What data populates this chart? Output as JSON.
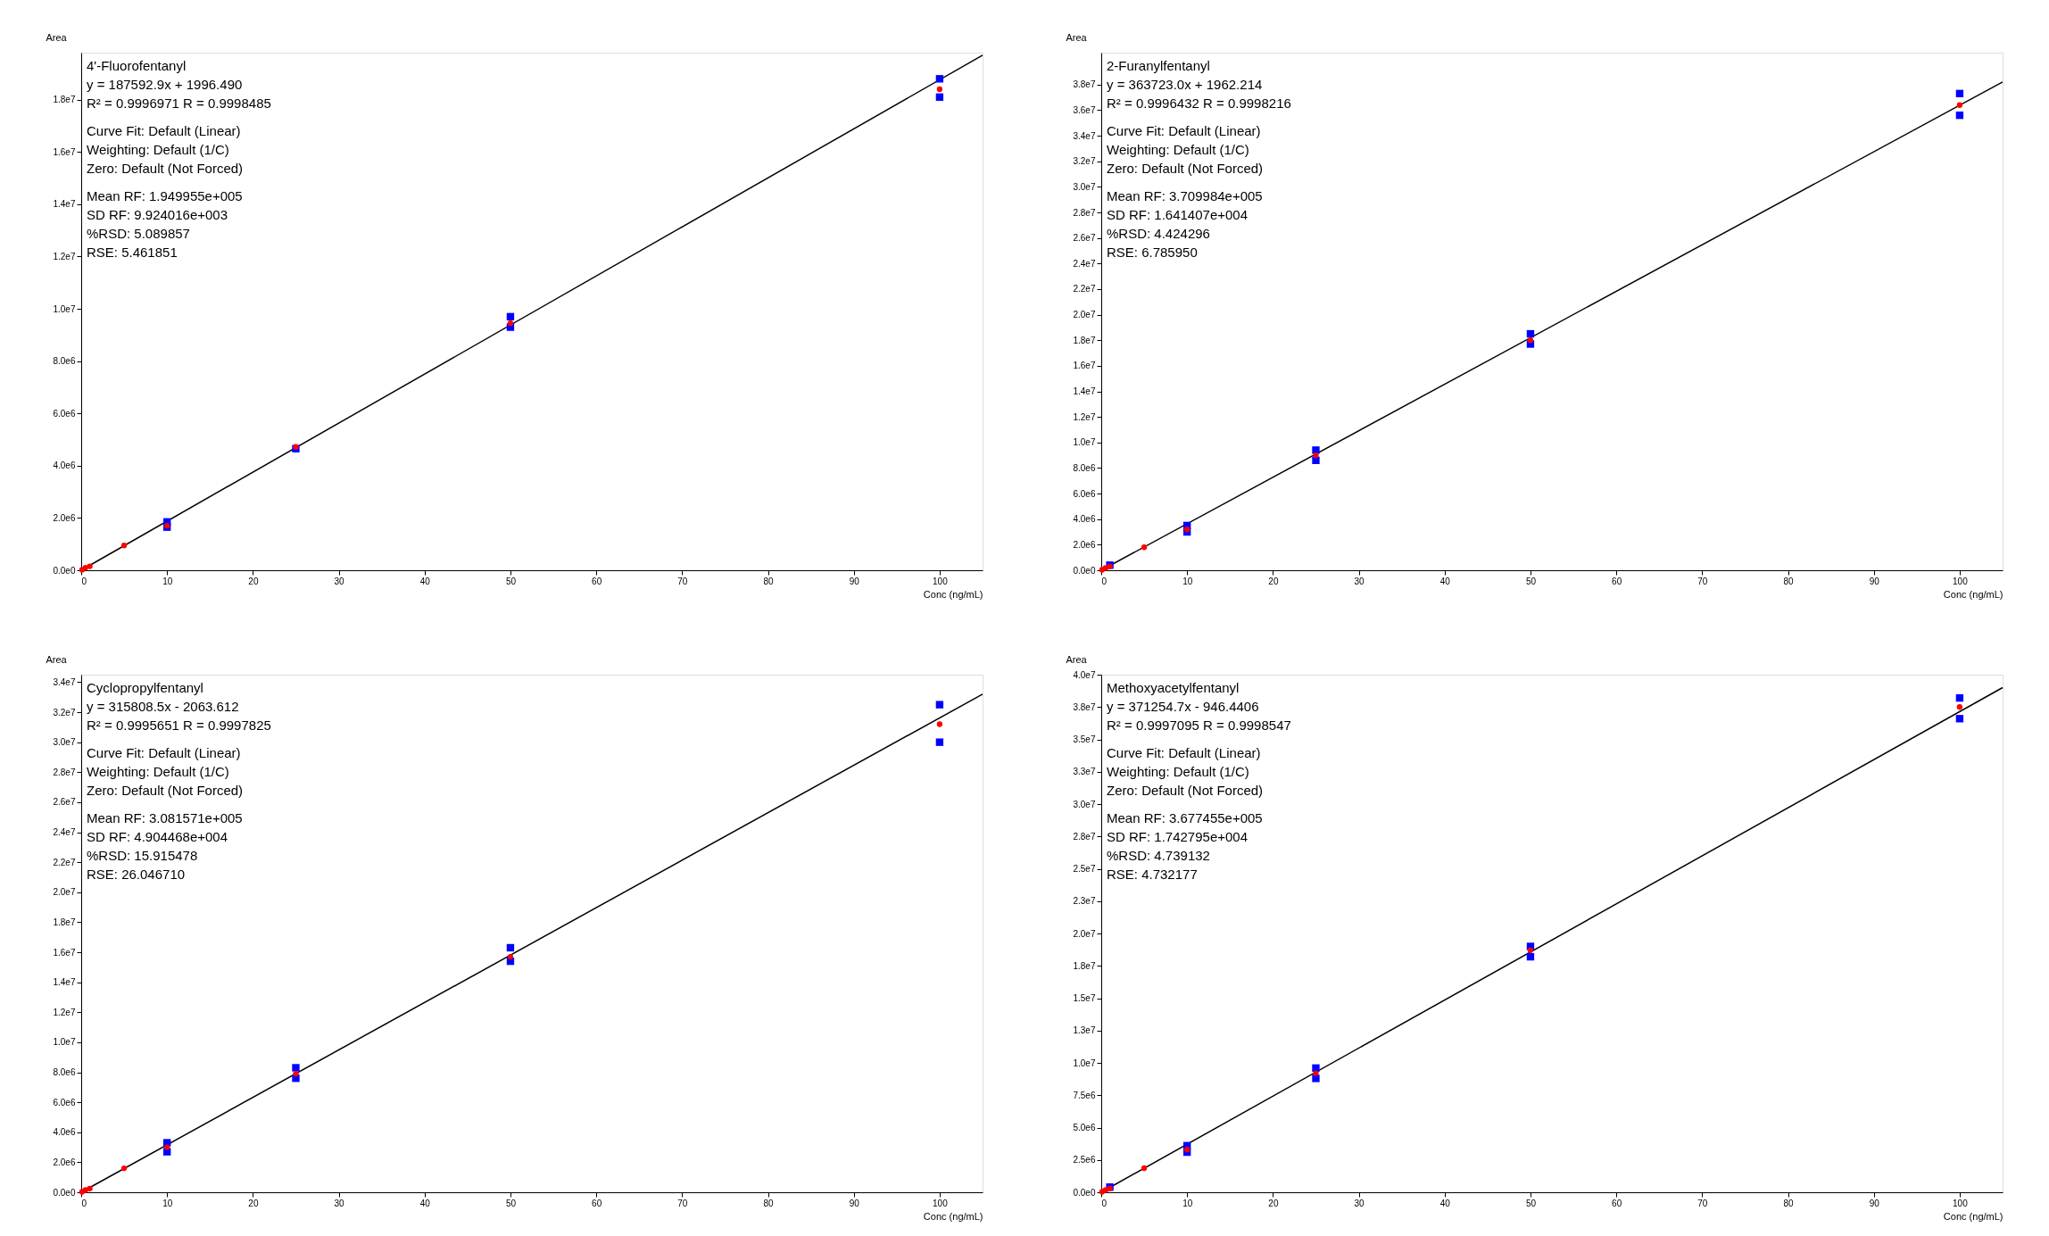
{
  "chart_data": [
    {
      "type": "scatter",
      "title": "4'-Fluorofentanyl",
      "xlabel": "Conc (ng/mL)",
      "ylabel": "Area",
      "grid": false,
      "annotations": [
        "y = 187592.9x + 1996.490",
        "R² = 0.9996971   R = 0.9998485",
        "Curve Fit: Default (Linear)",
        "Weighting: Default (1/C)",
        "Zero: Default (Not Forced)",
        "Mean RF: 1.949955e+005",
        "SD RF: 9.924016e+003",
        "%RSD: 5.089857",
        "RSE: 5.461851"
      ],
      "xlim": [
        0,
        105
      ],
      "xticks": [
        0,
        10,
        20,
        30,
        40,
        50,
        60,
        70,
        80,
        90,
        100
      ],
      "ylim": [
        0,
        19800000
      ],
      "yticks": [
        {
          "value": 0,
          "label": "0.0e0"
        },
        {
          "value": 2000000,
          "label": "2.0e6"
        },
        {
          "value": 4000000,
          "label": "4.0e6"
        },
        {
          "value": 6000000,
          "label": "6.0e6"
        },
        {
          "value": 8000000,
          "label": "8.0e6"
        },
        {
          "value": 10000000,
          "label": "1.0e7"
        },
        {
          "value": 12000000,
          "label": "1.2e7"
        },
        {
          "value": 14000000,
          "label": "1.4e7"
        },
        {
          "value": 16000000,
          "label": "1.6e7"
        },
        {
          "value": 18000000,
          "label": "1.8e7"
        }
      ],
      "series": [
        {
          "type": "line",
          "color": "#000000",
          "marker": "none",
          "line_style": "solid",
          "x": [
            0,
            105
          ],
          "values": [
            0,
            19700000
          ]
        },
        {
          "color": "#0000ff",
          "marker": "square",
          "x": [
            10,
            10,
            25,
            50,
            50,
            100,
            100
          ],
          "values": [
            1850000,
            1650000,
            4650000,
            9700000,
            9300000,
            18800000,
            18100000
          ]
        },
        {
          "color": "#ff0000",
          "marker": "circle",
          "x": [
            0.1,
            0.5,
            1,
            5,
            10,
            25,
            50,
            100
          ],
          "values": [
            20000,
            100000,
            150000,
            950000,
            1700000,
            4720000,
            9450000,
            18400000
          ]
        }
      ]
    },
    {
      "type": "scatter",
      "title": "2-Furanylfentanyl",
      "xlabel": "Conc (ng/mL)",
      "ylabel": "Area",
      "grid": false,
      "annotations": [
        "y = 363723.0x + 1962.214",
        "R² = 0.9996432   R = 0.9998216",
        "Curve Fit: Default (Linear)",
        "Weighting: Default (1/C)",
        "Zero: Default (Not Forced)",
        "Mean RF: 3.709984e+005",
        "SD RF: 1.641407e+004",
        "%RSD: 4.424296",
        "RSE: 6.785950"
      ],
      "xlim": [
        0,
        105
      ],
      "xticks": [
        0,
        10,
        20,
        30,
        40,
        50,
        60,
        70,
        80,
        90,
        100
      ],
      "ylim": [
        0,
        40500000
      ],
      "yticks": [
        {
          "value": 0,
          "label": "0.0e0"
        },
        {
          "value": 2000000,
          "label": "2.0e6"
        },
        {
          "value": 4000000,
          "label": "4.0e6"
        },
        {
          "value": 6000000,
          "label": "6.0e6"
        },
        {
          "value": 8000000,
          "label": "8.0e6"
        },
        {
          "value": 10000000,
          "label": "1.0e7"
        },
        {
          "value": 12000000,
          "label": "1.2e7"
        },
        {
          "value": 14000000,
          "label": "1.4e7"
        },
        {
          "value": 16000000,
          "label": "1.6e7"
        },
        {
          "value": 18000000,
          "label": "1.8e7"
        },
        {
          "value": 20000000,
          "label": "2.0e7"
        },
        {
          "value": 22000000,
          "label": "2.2e7"
        },
        {
          "value": 24000000,
          "label": "2.4e7"
        },
        {
          "value": 26000000,
          "label": "2.6e7"
        },
        {
          "value": 28000000,
          "label": "2.8e7"
        },
        {
          "value": 30000000,
          "label": "3.0e7"
        },
        {
          "value": 32000000,
          "label": "3.2e7"
        },
        {
          "value": 34000000,
          "label": "3.4e7"
        },
        {
          "value": 36000000,
          "label": "3.6e7"
        },
        {
          "value": 38000000,
          "label": "3.8e7"
        }
      ],
      "series": [
        {
          "type": "line",
          "color": "#000000",
          "marker": "none",
          "line_style": "solid",
          "x": [
            0,
            105
          ],
          "values": [
            0,
            38200000
          ]
        },
        {
          "color": "#0000ff",
          "marker": "square",
          "x": [
            1,
            10,
            10,
            25,
            25,
            50,
            50,
            100,
            100
          ],
          "values": [
            400000,
            3500000,
            3000000,
            9400000,
            8600000,
            18500000,
            17700000,
            37300000,
            35600000
          ]
        },
        {
          "color": "#ff0000",
          "marker": "circle",
          "x": [
            0.1,
            0.5,
            1,
            5,
            10,
            25,
            50,
            100
          ],
          "values": [
            40000,
            180000,
            300000,
            1800000,
            3200000,
            9000000,
            18000000,
            36400000
          ]
        }
      ]
    },
    {
      "type": "scatter",
      "title": "Cyclopropylfentanyl",
      "xlabel": "Conc (ng/mL)",
      "ylabel": "Area",
      "grid": false,
      "annotations": [
        "y = 315808.5x - 2063.612",
        "R² = 0.9995651   R = 0.9997825",
        "Curve Fit: Default (Linear)",
        "Weighting: Default (1/C)",
        "Zero: Default (Not Forced)",
        "Mean RF: 3.081571e+005",
        "SD RF: 4.904468e+004",
        "%RSD: 15.915478",
        "RSE: 26.046710"
      ],
      "xlim": [
        0,
        105
      ],
      "xticks": [
        0,
        10,
        20,
        30,
        40,
        50,
        60,
        70,
        80,
        90,
        100
      ],
      "ylim": [
        0,
        34500000
      ],
      "yticks": [
        {
          "value": 0,
          "label": "0.0e0"
        },
        {
          "value": 2000000,
          "label": "2.0e6"
        },
        {
          "value": 4000000,
          "label": "4.0e6"
        },
        {
          "value": 6000000,
          "label": "6.0e6"
        },
        {
          "value": 8000000,
          "label": "8.0e6"
        },
        {
          "value": 10000000,
          "label": "1.0e7"
        },
        {
          "value": 12000000,
          "label": "1.2e7"
        },
        {
          "value": 14000000,
          "label": "1.4e7"
        },
        {
          "value": 16000000,
          "label": "1.6e7"
        },
        {
          "value": 18000000,
          "label": "1.8e7"
        },
        {
          "value": 20000000,
          "label": "2.0e7"
        },
        {
          "value": 22000000,
          "label": "2.2e7"
        },
        {
          "value": 24000000,
          "label": "2.4e7"
        },
        {
          "value": 26000000,
          "label": "2.6e7"
        },
        {
          "value": 28000000,
          "label": "2.8e7"
        },
        {
          "value": 30000000,
          "label": "3.0e7"
        },
        {
          "value": 32000000,
          "label": "3.2e7"
        },
        {
          "value": 34000000,
          "label": "3.4e7"
        }
      ],
      "series": [
        {
          "type": "line",
          "color": "#000000",
          "marker": "none",
          "line_style": "solid",
          "x": [
            0,
            105
          ],
          "values": [
            0,
            33200000
          ]
        },
        {
          "color": "#0000ff",
          "marker": "square",
          "x": [
            10,
            10,
            25,
            25,
            50,
            50,
            100,
            100
          ],
          "values": [
            3300000,
            2700000,
            8300000,
            7600000,
            16300000,
            15400000,
            32500000,
            30000000
          ]
        },
        {
          "color": "#ff0000",
          "marker": "circle",
          "x": [
            0.1,
            0.5,
            1,
            5,
            10,
            25,
            50,
            100
          ],
          "values": [
            30000,
            150000,
            250000,
            1600000,
            3000000,
            7900000,
            15700000,
            31200000
          ]
        }
      ]
    },
    {
      "type": "scatter",
      "title": "Methoxyacetylfentanyl",
      "xlabel": "Conc (ng/mL)",
      "ylabel": "Area",
      "grid": false,
      "annotations": [
        "y = 371254.7x - 946.4406",
        "R² = 0.9997095   R = 0.9998547",
        "Curve Fit: Default (Linear)",
        "Weighting: Default (1/C)",
        "Zero: Default (Not Forced)",
        "Mean RF: 3.677455e+005",
        "SD RF: 1.742795e+004",
        "%RSD: 4.739132",
        "RSE: 4.732177"
      ],
      "xlim": [
        0,
        105
      ],
      "xticks": [
        0,
        10,
        20,
        30,
        40,
        50,
        60,
        70,
        80,
        90,
        100
      ],
      "ylim": [
        0,
        40000000
      ],
      "yticks": [
        {
          "value": 0,
          "label": "0.0e0"
        },
        {
          "value": 2500000,
          "label": "2.5e6"
        },
        {
          "value": 5000000,
          "label": "5.0e6"
        },
        {
          "value": 7500000,
          "label": "7.5e6"
        },
        {
          "value": 10000000,
          "label": "1.0e7"
        },
        {
          "value": 12500000,
          "label": "1.3e7"
        },
        {
          "value": 15000000,
          "label": "1.5e7"
        },
        {
          "value": 17500000,
          "label": "1.8e7"
        },
        {
          "value": 20000000,
          "label": "2.0e7"
        },
        {
          "value": 22500000,
          "label": "2.3e7"
        },
        {
          "value": 25000000,
          "label": "2.5e7"
        },
        {
          "value": 27500000,
          "label": "2.8e7"
        },
        {
          "value": 30000000,
          "label": "3.0e7"
        },
        {
          "value": 32500000,
          "label": "3.3e7"
        },
        {
          "value": 35000000,
          "label": "3.5e7"
        },
        {
          "value": 37500000,
          "label": "3.8e7"
        },
        {
          "value": 40000000,
          "label": "4.0e7"
        }
      ],
      "series": [
        {
          "type": "line",
          "color": "#000000",
          "marker": "none",
          "line_style": "solid",
          "x": [
            0,
            105
          ],
          "values": [
            0,
            39000000
          ]
        },
        {
          "color": "#0000ff",
          "marker": "square",
          "x": [
            1,
            10,
            10,
            25,
            25,
            50,
            50,
            100,
            100
          ],
          "values": [
            400000,
            3600000,
            3100000,
            9600000,
            8800000,
            19000000,
            18200000,
            38200000,
            36600000
          ]
        },
        {
          "color": "#ff0000",
          "marker": "circle",
          "x": [
            0.1,
            0.5,
            1,
            5,
            10,
            25,
            50,
            100
          ],
          "values": [
            40000,
            180000,
            300000,
            1860000,
            3300000,
            9200000,
            18700000,
            37500000
          ]
        }
      ]
    }
  ]
}
